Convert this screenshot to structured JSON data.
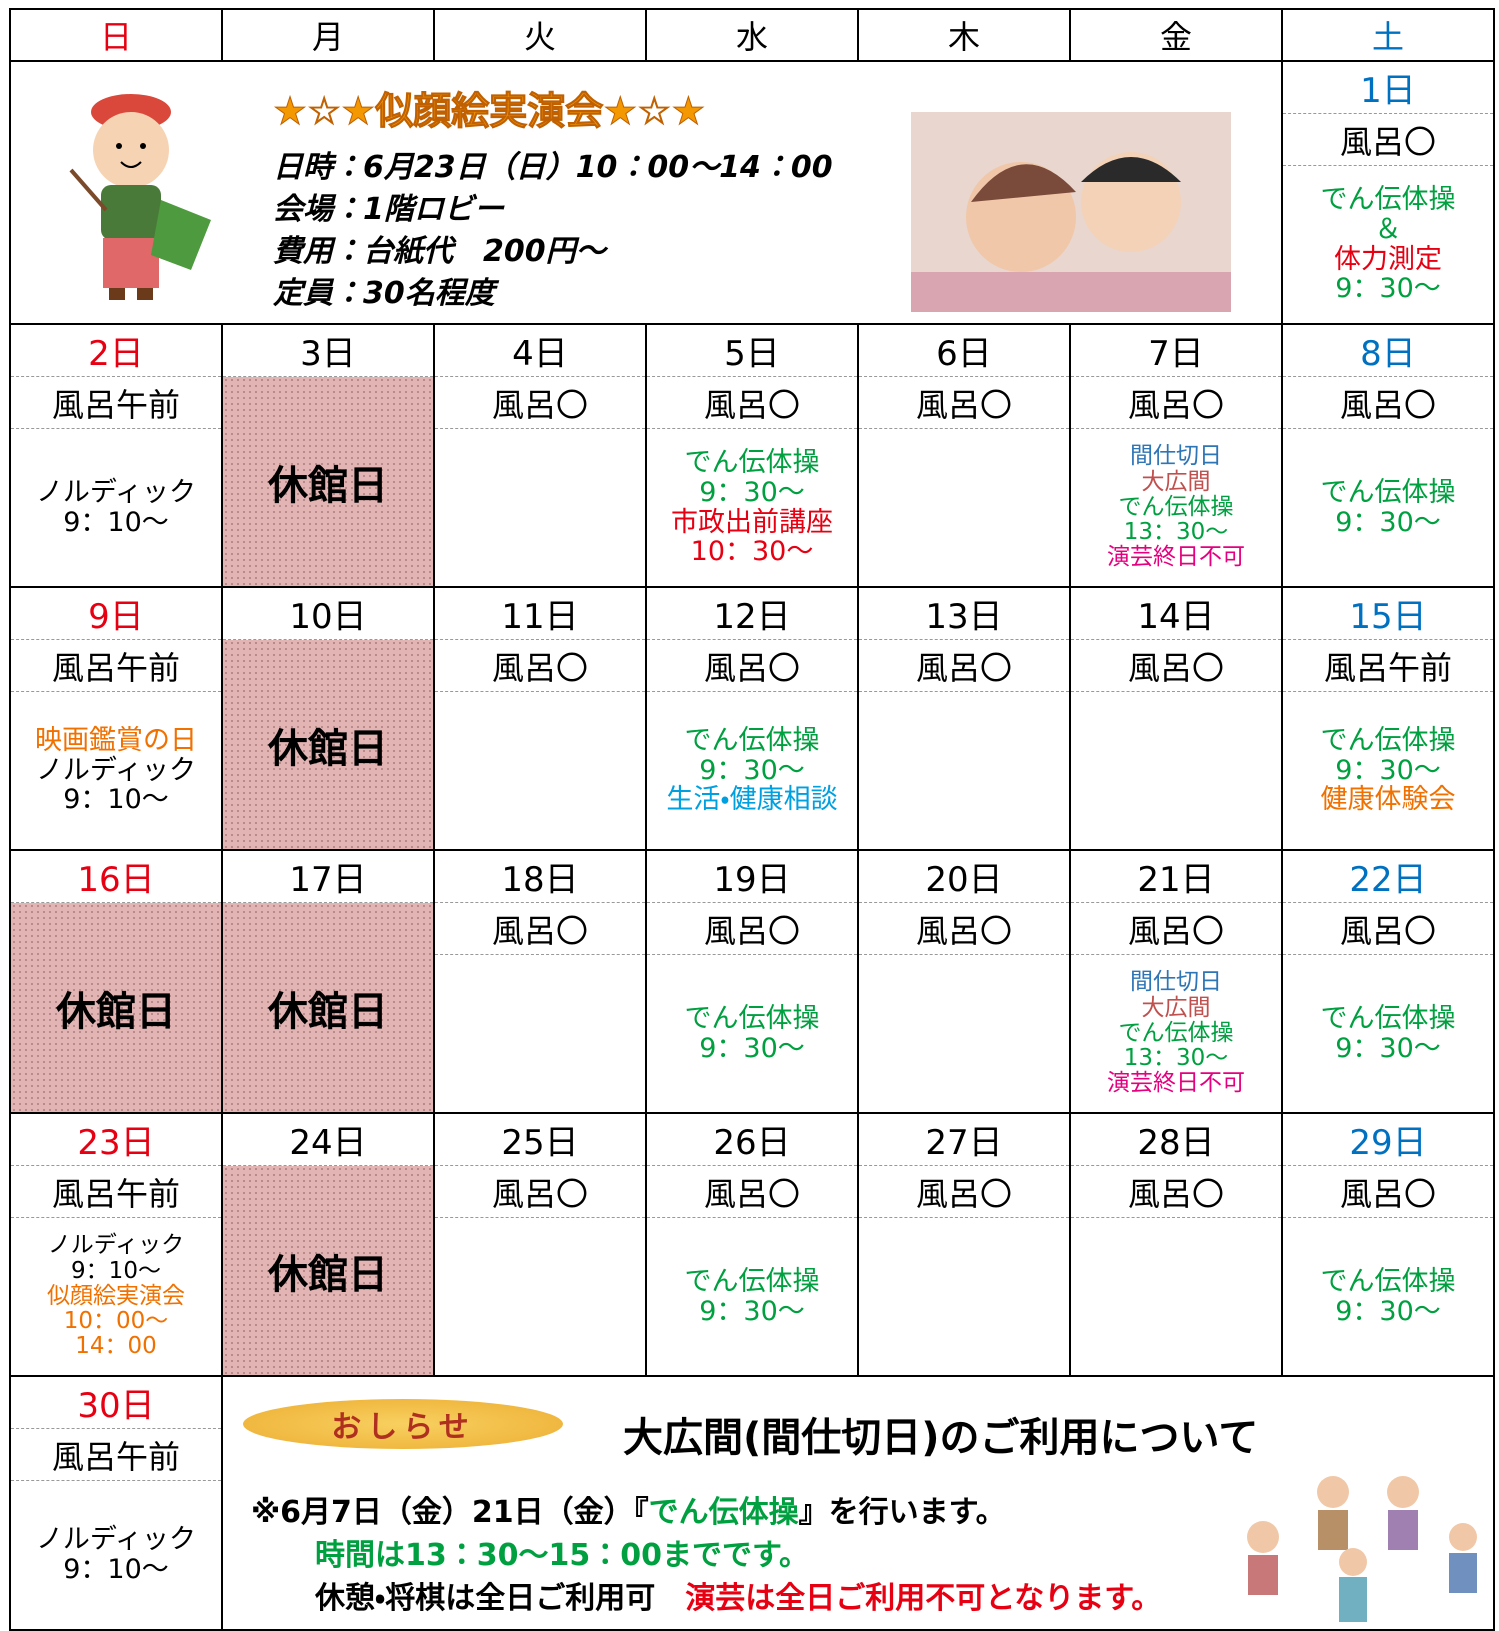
{
  "weekdays": [
    "日",
    "月",
    "火",
    "水",
    "木",
    "金",
    "土"
  ],
  "banner": {
    "title": "★☆★似顔絵実演会★☆★",
    "lines": [
      "日時：6月23日（日）10：00～14：00",
      "会場：1階ロビー",
      "費用：台紙代　200円～",
      "定員：30名程度"
    ]
  },
  "days": [
    {
      "date": "1日",
      "bath": "風呂〇",
      "events": [
        {
          "text": "でん伝体操",
          "color": "#00a040"
        },
        {
          "text": "＆",
          "color": "#00a040"
        },
        {
          "text": "体力測定",
          "color": "#e60012"
        },
        {
          "text": "9：30～",
          "color": "#00a040"
        }
      ]
    },
    {
      "date": "2日",
      "bath": "風呂午前",
      "events": [
        {
          "text": "ノルディック",
          "color": "#000000"
        },
        {
          "text": "9：10～",
          "color": "#000000"
        }
      ]
    },
    {
      "date": "3日",
      "closed": "休館日"
    },
    {
      "date": "4日",
      "bath": "風呂〇",
      "events": []
    },
    {
      "date": "5日",
      "bath": "風呂〇",
      "events": [
        {
          "text": "でん伝体操",
          "color": "#00a040"
        },
        {
          "text": "9：30～",
          "color": "#00a040"
        },
        {
          "text": "市政出前講座",
          "color": "#e60012"
        },
        {
          "text": "10：30～",
          "color": "#e60012"
        }
      ]
    },
    {
      "date": "6日",
      "bath": "風呂〇",
      "events": []
    },
    {
      "date": "7日",
      "bath": "風呂〇",
      "events": [
        {
          "text": "間仕切日",
          "color": "#2e75b6"
        },
        {
          "text": "大広間",
          "color": "#c0504d"
        },
        {
          "text": "でん伝体操",
          "color": "#00a040"
        },
        {
          "text": "13：30～",
          "color": "#00a040"
        },
        {
          "text": "演芸終日不可",
          "color": "#e4007f"
        }
      ]
    },
    {
      "date": "8日",
      "bath": "風呂〇",
      "events": [
        {
          "text": "でん伝体操",
          "color": "#00a040"
        },
        {
          "text": "9：30～",
          "color": "#00a040"
        }
      ]
    },
    {
      "date": "9日",
      "bath": "風呂午前",
      "events": [
        {
          "text": "映画鑑賞の日",
          "color": "#f07000"
        },
        {
          "text": "ノルディック",
          "color": "#000000"
        },
        {
          "text": "9：10～",
          "color": "#000000"
        }
      ]
    },
    {
      "date": "10日",
      "closed": "休館日"
    },
    {
      "date": "11日",
      "bath": "風呂〇",
      "events": []
    },
    {
      "date": "12日",
      "bath": "風呂〇",
      "events": [
        {
          "text": "でん伝体操",
          "color": "#00a040"
        },
        {
          "text": "9：30～",
          "color": "#00a040"
        },
        {
          "text": "生活・健康相談",
          "color": "#00a0e0"
        }
      ]
    },
    {
      "date": "13日",
      "bath": "風呂〇",
      "events": []
    },
    {
      "date": "14日",
      "bath": "風呂〇",
      "events": []
    },
    {
      "date": "15日",
      "bath": "風呂午前",
      "events": [
        {
          "text": "でん伝体操",
          "color": "#00a040"
        },
        {
          "text": "9：30～",
          "color": "#00a040"
        },
        {
          "text": "健康体験会",
          "color": "#f07000"
        }
      ]
    },
    {
      "date": "16日",
      "closed": "休館日"
    },
    {
      "date": "17日",
      "closed": "休館日"
    },
    {
      "date": "18日",
      "bath": "風呂〇",
      "events": []
    },
    {
      "date": "19日",
      "bath": "風呂〇",
      "events": [
        {
          "text": "でん伝体操",
          "color": "#00a040"
        },
        {
          "text": "9：30～",
          "color": "#00a040"
        }
      ]
    },
    {
      "date": "20日",
      "bath": "風呂〇",
      "events": []
    },
    {
      "date": "21日",
      "bath": "風呂〇",
      "events": [
        {
          "text": "間仕切日",
          "color": "#2e75b6"
        },
        {
          "text": "大広間",
          "color": "#c0504d"
        },
        {
          "text": "でん伝体操",
          "color": "#00a040"
        },
        {
          "text": "13：30～",
          "color": "#00a040"
        },
        {
          "text": "演芸終日不可",
          "color": "#e4007f"
        }
      ]
    },
    {
      "date": "22日",
      "bath": "風呂〇",
      "events": [
        {
          "text": "でん伝体操",
          "color": "#00a040"
        },
        {
          "text": "9：30～",
          "color": "#00a040"
        }
      ]
    },
    {
      "date": "23日",
      "bath": "風呂午前",
      "events": [
        {
          "text": "ノルディック",
          "color": "#000000"
        },
        {
          "text": "9：10～",
          "color": "#000000"
        },
        {
          "text": "似顔絵実演会",
          "color": "#f07000"
        },
        {
          "text": "10：00～",
          "color": "#f07000"
        },
        {
          "text": "14：00",
          "color": "#f07000"
        }
      ]
    },
    {
      "date": "24日",
      "closed": "休館日"
    },
    {
      "date": "25日",
      "bath": "風呂〇",
      "events": []
    },
    {
      "date": "26日",
      "bath": "風呂〇",
      "events": [
        {
          "text": "でん伝体操",
          "color": "#00a040"
        },
        {
          "text": "9：30～",
          "color": "#00a040"
        }
      ]
    },
    {
      "date": "27日",
      "bath": "風呂〇",
      "events": []
    },
    {
      "date": "28日",
      "bath": "風呂〇",
      "events": []
    },
    {
      "date": "29日",
      "bath": "風呂〇",
      "events": [
        {
          "text": "でん伝体操",
          "color": "#00a040"
        },
        {
          "text": "9：30～",
          "color": "#00a040"
        }
      ]
    },
    {
      "date": "30日",
      "bath": "風呂午前",
      "events": [
        {
          "text": "ノルディック",
          "color": "#000000"
        },
        {
          "text": "9：10～",
          "color": "#000000"
        }
      ]
    }
  ],
  "notice": {
    "badge": "おしらせ",
    "title": "大広間(間仕切日)のご利用について",
    "lines": [
      [
        {
          "text": "※6月7日（金）21日（金）『",
          "color": "#000000"
        },
        {
          "text": "でん伝体操",
          "color": "#00a040"
        },
        {
          "text": "』を行います。",
          "color": "#000000"
        }
      ],
      [
        {
          "text": "時間は13：30～15：00までです。",
          "color": "#00a040"
        }
      ],
      [
        {
          "text": "休憩・将棋は全日ご利用可　",
          "color": "#000000"
        },
        {
          "text": "演芸は全日ご利用不可となります。",
          "color": "#e60012"
        }
      ]
    ]
  }
}
